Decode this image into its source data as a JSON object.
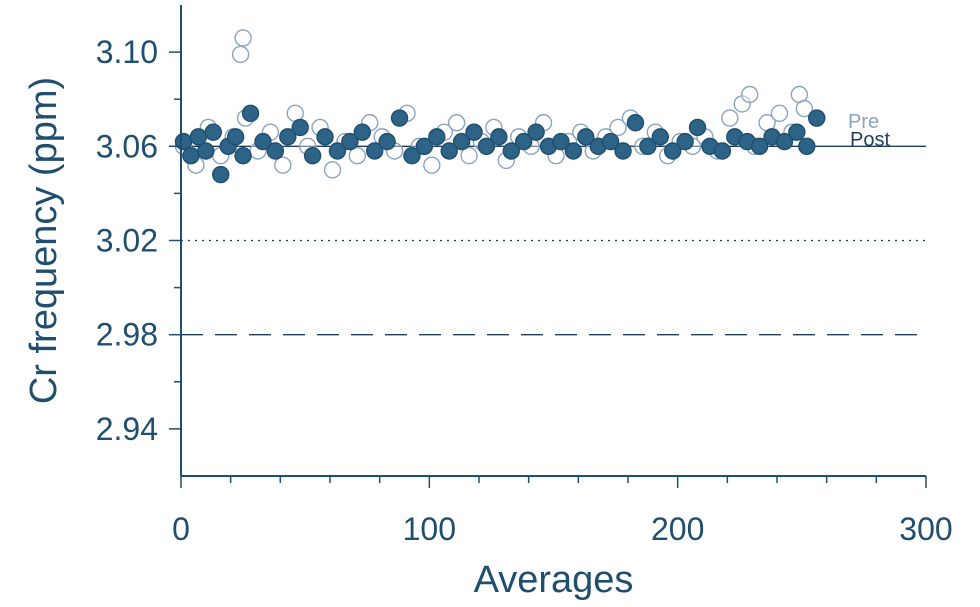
{
  "chart_data": {
    "type": "scatter",
    "title": "",
    "xlabel": "Averages",
    "ylabel": "Cr frequency (ppm)",
    "xlim": [
      0,
      300
    ],
    "ylim": [
      2.92,
      3.12
    ],
    "x_ticks": [
      0,
      100,
      200,
      300
    ],
    "x_tick_labels": [
      "0",
      "100",
      "200",
      "300"
    ],
    "y_ticks": [
      2.94,
      2.98,
      3.02,
      3.06,
      3.1
    ],
    "y_tick_labels": [
      "2.94",
      "2.98",
      "3.02",
      "3.06",
      "3.10"
    ],
    "grid": false,
    "legend": "right",
    "reference_lines": [
      {
        "y": 3.06,
        "style": "solid"
      },
      {
        "y": 3.02,
        "style": "dotted"
      },
      {
        "y": 2.98,
        "style": "dashed"
      }
    ],
    "colors": {
      "pre": "#8aa4bf",
      "post": "#2d6386",
      "axis": "#1f4e6e",
      "reference": "#1f3f5c"
    },
    "series": [
      {
        "name": "Pre",
        "marker": "open-circle",
        "x": [
          1,
          6,
          11,
          16,
          21,
          24,
          25,
          26,
          31,
          36,
          41,
          46,
          51,
          56,
          61,
          66,
          71,
          76,
          81,
          86,
          91,
          96,
          101,
          106,
          111,
          116,
          121,
          126,
          131,
          136,
          141,
          146,
          151,
          156,
          161,
          166,
          171,
          176,
          181,
          186,
          191,
          196,
          201,
          206,
          211,
          216,
          221,
          226,
          229,
          231,
          236,
          241,
          246,
          249,
          251,
          256
        ],
        "y": [
          3.06,
          3.052,
          3.068,
          3.056,
          3.064,
          3.099,
          3.106,
          3.072,
          3.058,
          3.066,
          3.052,
          3.074,
          3.06,
          3.068,
          3.05,
          3.062,
          3.056,
          3.07,
          3.064,
          3.058,
          3.074,
          3.06,
          3.052,
          3.066,
          3.07,
          3.056,
          3.062,
          3.068,
          3.054,
          3.064,
          3.06,
          3.07,
          3.056,
          3.062,
          3.066,
          3.058,
          3.064,
          3.068,
          3.072,
          3.06,
          3.066,
          3.056,
          3.062,
          3.06,
          3.064,
          3.058,
          3.072,
          3.078,
          3.082,
          3.06,
          3.07,
          3.074,
          3.066,
          3.082,
          3.076,
          3.072
        ]
      },
      {
        "name": "Post",
        "marker": "filled-circle",
        "x": [
          1,
          4,
          7,
          10,
          13,
          16,
          19,
          22,
          25,
          28,
          33,
          38,
          43,
          48,
          53,
          58,
          63,
          68,
          73,
          78,
          83,
          88,
          93,
          98,
          103,
          108,
          113,
          118,
          123,
          128,
          133,
          138,
          143,
          148,
          153,
          158,
          163,
          168,
          173,
          178,
          183,
          188,
          193,
          198,
          203,
          208,
          213,
          218,
          223,
          228,
          233,
          238,
          243,
          248,
          252,
          256
        ],
        "y": [
          3.062,
          3.056,
          3.064,
          3.058,
          3.066,
          3.048,
          3.06,
          3.064,
          3.056,
          3.074,
          3.062,
          3.058,
          3.064,
          3.068,
          3.056,
          3.064,
          3.058,
          3.062,
          3.066,
          3.058,
          3.062,
          3.072,
          3.056,
          3.06,
          3.064,
          3.058,
          3.062,
          3.066,
          3.06,
          3.064,
          3.058,
          3.062,
          3.066,
          3.06,
          3.062,
          3.058,
          3.064,
          3.06,
          3.062,
          3.058,
          3.07,
          3.06,
          3.064,
          3.058,
          3.062,
          3.068,
          3.06,
          3.058,
          3.064,
          3.062,
          3.06,
          3.064,
          3.062,
          3.066,
          3.06,
          3.072
        ]
      }
    ]
  }
}
